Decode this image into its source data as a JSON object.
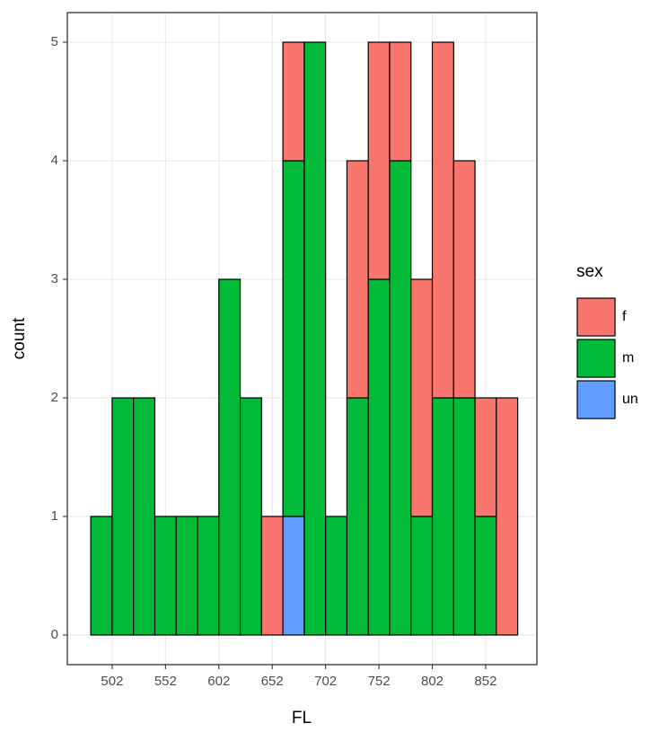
{
  "chart_data": {
    "type": "histogram",
    "x_label": "FL",
    "y_label": "count",
    "legend_title": "sex",
    "bins": [
      482,
      502,
      522,
      542,
      562,
      582,
      602,
      622,
      642,
      662,
      682,
      702,
      722,
      742,
      762,
      782,
      802,
      822,
      842,
      862,
      882
    ],
    "series": [
      {
        "name": "f",
        "color": "#F8766D",
        "values": [
          0,
          0,
          0,
          0,
          0,
          0,
          0,
          0,
          1,
          1,
          0,
          0,
          2,
          2,
          1,
          2,
          3,
          2,
          1,
          2
        ]
      },
      {
        "name": "m",
        "color": "#00BA38",
        "values": [
          1,
          2,
          2,
          1,
          1,
          1,
          3,
          2,
          0,
          3,
          5,
          1,
          2,
          3,
          4,
          1,
          2,
          2,
          1,
          0
        ]
      },
      {
        "name": "un",
        "color": "#619CFF",
        "values": [
          0,
          0,
          0,
          0,
          0,
          0,
          0,
          0,
          0,
          1,
          0,
          0,
          0,
          0,
          0,
          0,
          0,
          0,
          0,
          0
        ]
      }
    ],
    "xlim": [
      460,
      900
    ],
    "ylim": [
      -0.25,
      5.25
    ],
    "xticks": [
      502,
      552,
      602,
      652,
      702,
      752,
      802,
      852
    ],
    "yticks": [
      0,
      1,
      2,
      3,
      4,
      5
    ],
    "grid": true,
    "stacked": true,
    "legend_position": "right"
  }
}
